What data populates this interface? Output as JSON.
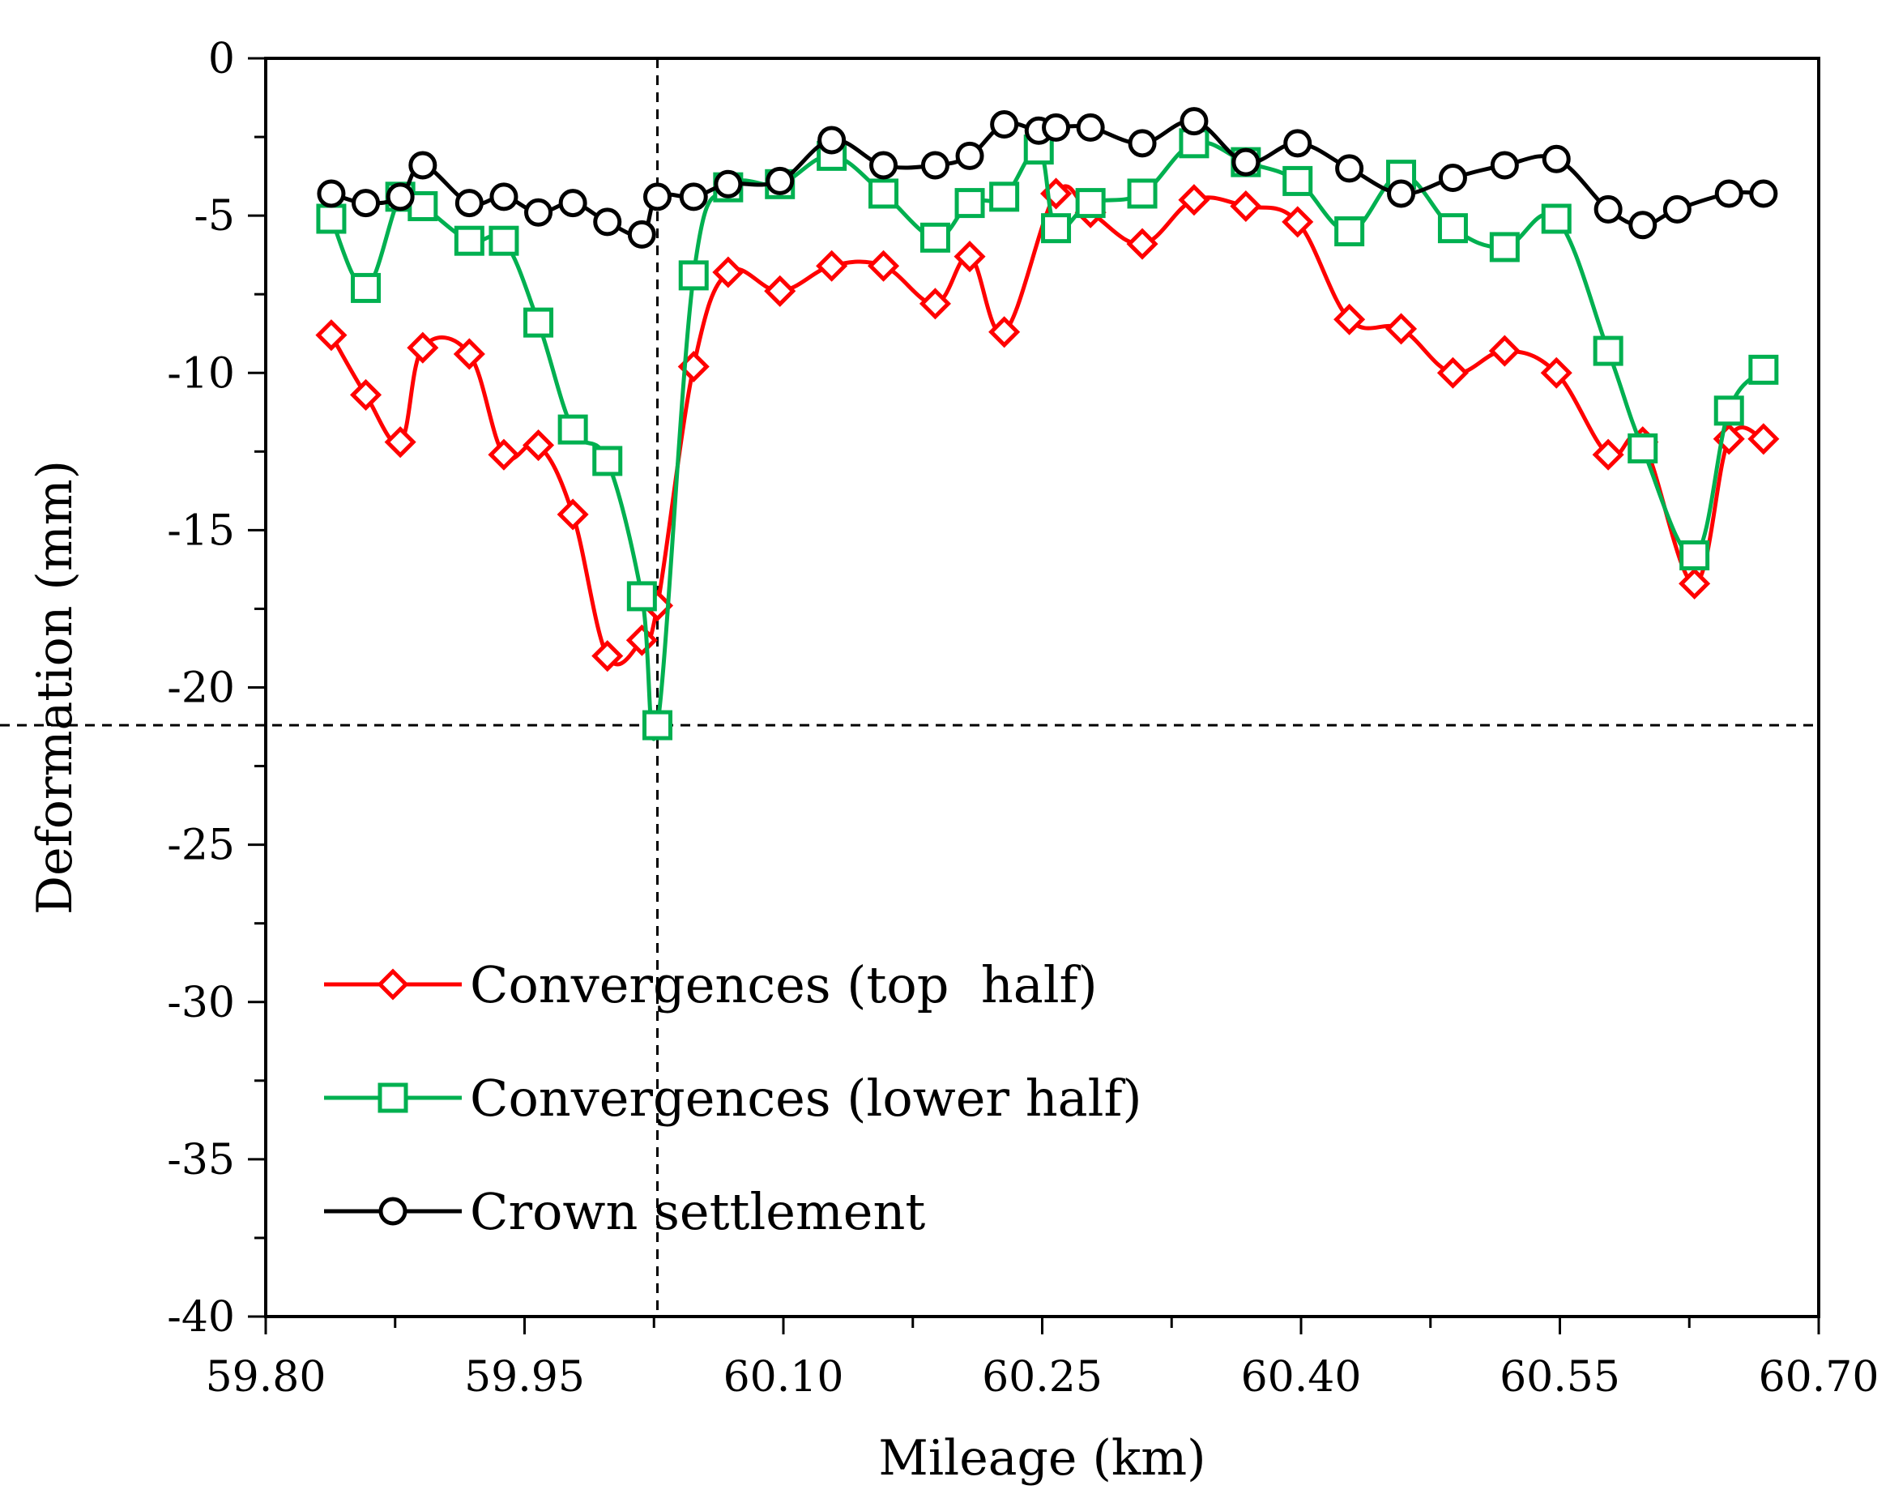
{
  "chart_data": {
    "type": "line",
    "title": "",
    "xlabel": "Mileage (km)",
    "ylabel": "Deformation (mm)",
    "xlim": [
      59.8,
      60.7
    ],
    "ylim": [
      -40,
      0
    ],
    "x_ticks": [
      59.8,
      59.95,
      60.1,
      60.25,
      60.4,
      60.55,
      60.7
    ],
    "x_tick_labels": [
      "59.80",
      "59.95",
      "60.10",
      "60.25",
      "60.40",
      "60.55",
      "60.70"
    ],
    "y_ticks": [
      0,
      -5,
      -10,
      -15,
      -20,
      -25,
      -30,
      -35,
      -40
    ],
    "y_tick_labels": [
      "0",
      "-5",
      "-10",
      "-15",
      "-20",
      "-25",
      "-30",
      "-35",
      "-40"
    ],
    "grid": false,
    "legend_position": "bottom-left",
    "reference_lines": [
      {
        "orientation": "vertical",
        "value": 60.027,
        "style": "dashed"
      },
      {
        "orientation": "horizontal",
        "value": -21.2,
        "style": "dashed"
      }
    ],
    "series": [
      {
        "name": "Convergences (top  half)",
        "color": "#ff0000",
        "marker": "diamond",
        "points": [
          [
            59.838,
            -8.8
          ],
          [
            59.858,
            -10.7
          ],
          [
            59.878,
            -12.2
          ],
          [
            59.891,
            -9.2
          ],
          [
            59.918,
            -9.4
          ],
          [
            59.938,
            -12.6
          ],
          [
            59.958,
            -12.3
          ],
          [
            59.978,
            -14.5
          ],
          [
            59.998,
            -19.0
          ],
          [
            60.018,
            -18.5
          ],
          [
            60.027,
            -17.4
          ],
          [
            60.048,
            -9.8
          ],
          [
            60.068,
            -6.8
          ],
          [
            60.098,
            -7.4
          ],
          [
            60.128,
            -6.6
          ],
          [
            60.158,
            -6.6
          ],
          [
            60.188,
            -7.8
          ],
          [
            60.208,
            -6.3
          ],
          [
            60.228,
            -8.7
          ],
          [
            60.258,
            -4.3
          ],
          [
            60.278,
            -4.9
          ],
          [
            60.308,
            -5.9
          ],
          [
            60.338,
            -4.5
          ],
          [
            60.368,
            -4.7
          ],
          [
            60.398,
            -5.2
          ],
          [
            60.428,
            -8.3
          ],
          [
            60.458,
            -8.6
          ],
          [
            60.488,
            -10.0
          ],
          [
            60.518,
            -9.3
          ],
          [
            60.548,
            -10.0
          ],
          [
            60.578,
            -12.6
          ],
          [
            60.598,
            -12.2
          ],
          [
            60.628,
            -16.7
          ],
          [
            60.648,
            -12.1
          ],
          [
            60.668,
            -12.1
          ]
        ]
      },
      {
        "name": "Convergences (lower half)",
        "color": "#00b050",
        "marker": "square",
        "points": [
          [
            59.838,
            -5.1
          ],
          [
            59.858,
            -7.3
          ],
          [
            59.878,
            -4.4
          ],
          [
            59.891,
            -4.7
          ],
          [
            59.918,
            -5.8
          ],
          [
            59.938,
            -5.8
          ],
          [
            59.958,
            -8.4
          ],
          [
            59.978,
            -11.8
          ],
          [
            59.998,
            -12.8
          ],
          [
            60.018,
            -17.1
          ],
          [
            60.027,
            -21.2
          ],
          [
            60.048,
            -6.9
          ],
          [
            60.068,
            -4.1
          ],
          [
            60.098,
            -4.0
          ],
          [
            60.128,
            -3.1
          ],
          [
            60.158,
            -4.3
          ],
          [
            60.188,
            -5.7
          ],
          [
            60.208,
            -4.6
          ],
          [
            60.228,
            -4.4
          ],
          [
            60.248,
            -2.9
          ],
          [
            60.258,
            -5.4
          ],
          [
            60.278,
            -4.6
          ],
          [
            60.308,
            -4.3
          ],
          [
            60.338,
            -2.7
          ],
          [
            60.368,
            -3.3
          ],
          [
            60.398,
            -3.9
          ],
          [
            60.428,
            -5.5
          ],
          [
            60.458,
            -3.7
          ],
          [
            60.488,
            -5.4
          ],
          [
            60.518,
            -6.0
          ],
          [
            60.548,
            -5.1
          ],
          [
            60.578,
            -9.3
          ],
          [
            60.598,
            -12.4
          ],
          [
            60.628,
            -15.8
          ],
          [
            60.648,
            -11.2
          ],
          [
            60.668,
            -9.9
          ]
        ]
      },
      {
        "name": "Crown settlement",
        "color": "#000000",
        "marker": "circle",
        "points": [
          [
            59.838,
            -4.3
          ],
          [
            59.858,
            -4.6
          ],
          [
            59.878,
            -4.4
          ],
          [
            59.891,
            -3.4
          ],
          [
            59.918,
            -4.6
          ],
          [
            59.938,
            -4.4
          ],
          [
            59.958,
            -4.9
          ],
          [
            59.978,
            -4.6
          ],
          [
            59.998,
            -5.2
          ],
          [
            60.018,
            -5.6
          ],
          [
            60.027,
            -4.4
          ],
          [
            60.048,
            -4.4
          ],
          [
            60.068,
            -4.0
          ],
          [
            60.098,
            -3.9
          ],
          [
            60.128,
            -2.6
          ],
          [
            60.158,
            -3.4
          ],
          [
            60.188,
            -3.4
          ],
          [
            60.208,
            -3.1
          ],
          [
            60.228,
            -2.1
          ],
          [
            60.248,
            -2.3
          ],
          [
            60.258,
            -2.2
          ],
          [
            60.278,
            -2.2
          ],
          [
            60.308,
            -2.7
          ],
          [
            60.338,
            -2.0
          ],
          [
            60.368,
            -3.3
          ],
          [
            60.398,
            -2.7
          ],
          [
            60.428,
            -3.5
          ],
          [
            60.458,
            -4.3
          ],
          [
            60.488,
            -3.8
          ],
          [
            60.518,
            -3.4
          ],
          [
            60.548,
            -3.2
          ],
          [
            60.578,
            -4.8
          ],
          [
            60.598,
            -5.3
          ],
          [
            60.618,
            -4.8
          ],
          [
            60.648,
            -4.3
          ],
          [
            60.668,
            -4.3
          ]
        ]
      }
    ]
  }
}
